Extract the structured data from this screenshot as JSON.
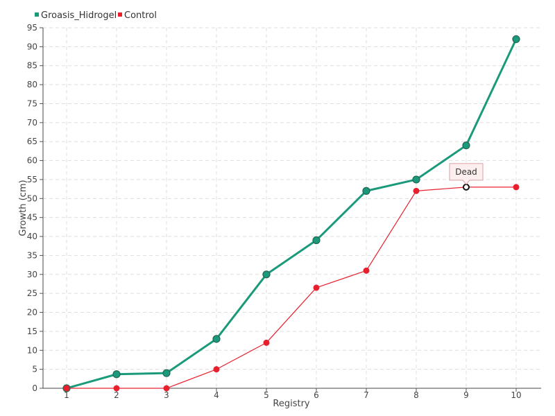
{
  "chart_data": {
    "type": "line",
    "title": "",
    "xlabel": "Registry",
    "ylabel": "Growth (cm)",
    "x": [
      1,
      2,
      3,
      4,
      5,
      6,
      7,
      8,
      9,
      10
    ],
    "ylim": [
      0,
      95
    ],
    "yticks": [
      0,
      5,
      10,
      15,
      20,
      25,
      30,
      35,
      40,
      45,
      50,
      55,
      60,
      65,
      70,
      75,
      80,
      85,
      90,
      95
    ],
    "grid": true,
    "legend_position": "top-left",
    "series": [
      {
        "name": "Groasis_Hidrogel",
        "color": "#1a9a7a",
        "values": [
          0,
          3.7,
          4,
          13,
          30,
          39,
          52,
          55,
          64,
          92
        ]
      },
      {
        "name": "Control",
        "color": "#e8202e",
        "values": [
          0,
          0,
          0,
          5,
          12,
          26.5,
          31,
          52,
          53,
          53
        ]
      }
    ],
    "annotations": [
      {
        "text": "Dead",
        "series": "Control",
        "x": 9,
        "y": 53
      }
    ]
  }
}
